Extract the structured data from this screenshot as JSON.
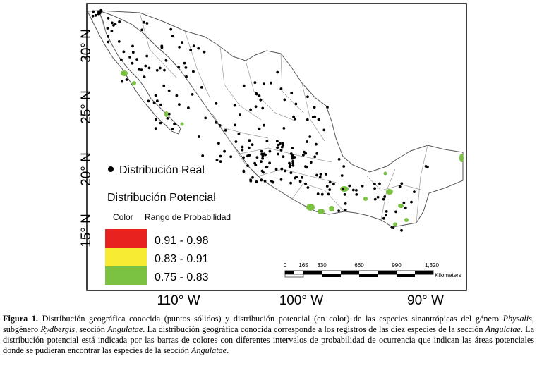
{
  "map": {
    "frame_color": "#000000",
    "land_fill": "#ffffff",
    "outline_color": "#555555",
    "state_border_color": "#9a9a9a",
    "point_color": "#000000",
    "latitude_labels": [
      "30° N",
      "25° N",
      "20° N",
      "15° N"
    ],
    "longitude_labels": [
      "110° W",
      "100° W",
      "90° W"
    ]
  },
  "legend": {
    "real_label": "Distribución Real",
    "potential_title": "Distribución Potencial",
    "color_header": "Color",
    "range_header": "Rango de Probabilidad",
    "classes": [
      {
        "color": "#e8221e",
        "range": "0.91 - 0.98"
      },
      {
        "color": "#f7ec31",
        "range": "0.83 - 0.91"
      },
      {
        "color": "#7cc242",
        "range": "0.75 - 0.83"
      }
    ]
  },
  "scalebar": {
    "ticks": [
      "0",
      "165",
      "330",
      "660",
      "990",
      "1,320"
    ],
    "unit": "Kilometers"
  },
  "caption": {
    "label": "Figura 1.",
    "p1": " Distribución geográfica conocida (puntos sólidos) y distribución potencial (en color) de las especies sinantrópicas del género ",
    "genus": "Physalis",
    "p2": ", subgénero ",
    "subgenus": "Rydbergis",
    "p3": ", sección ",
    "section1": "Angulatae",
    "p4": ". La distribución geográfica conocida corresponde a los registros de las diez especies de la sección ",
    "section2": "Angulatae",
    "p5": ". La distribución potencial está indicada por las barras de colores con diferentes intervalos de probabilidad de ocurrencia que indican las áreas potenciales donde se pudieran encontrar las especies de la sección ",
    "section3": "Angulatae",
    "p6": "."
  }
}
